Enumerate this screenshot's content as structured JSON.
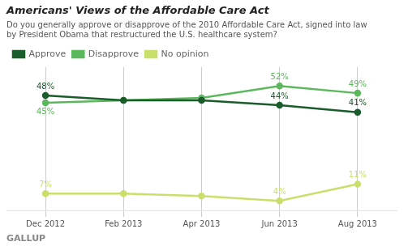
{
  "chart_data": {
    "type": "line",
    "title": "Americans' Views of the Affordable Care Act",
    "subtitle": "Do you generally approve or disapprove of the 2010 Affordable Care Act, signed into law\nby President Obama that restructured the U.S. healthcare system?",
    "source": "GALLUP",
    "categories": [
      "Dec 2012",
      "Feb 2013",
      "Apr 2013",
      "Jun 2013",
      "Aug 2013"
    ],
    "series": [
      {
        "name": "Approve",
        "color": "#1a5c2a",
        "values": [
          48,
          46,
          46,
          44,
          41
        ],
        "value_labels": [
          "48%",
          null,
          null,
          "44%",
          "41%"
        ]
      },
      {
        "name": "Disapprove",
        "color": "#5cb85c",
        "values": [
          45,
          46,
          47,
          52,
          49
        ],
        "value_labels": [
          "45%",
          null,
          null,
          "52%",
          "49%"
        ]
      },
      {
        "name": "No opinion",
        "color": "#c8e06b",
        "values": [
          7,
          7,
          6,
          4,
          11
        ],
        "value_labels": [
          "7%",
          null,
          null,
          "4%",
          "11%"
        ]
      }
    ],
    "ylim": [
      0,
      60
    ],
    "tick_labels": "x",
    "grid": "x",
    "legend": "upper left",
    "marker": "circle",
    "data_labels": true
  }
}
